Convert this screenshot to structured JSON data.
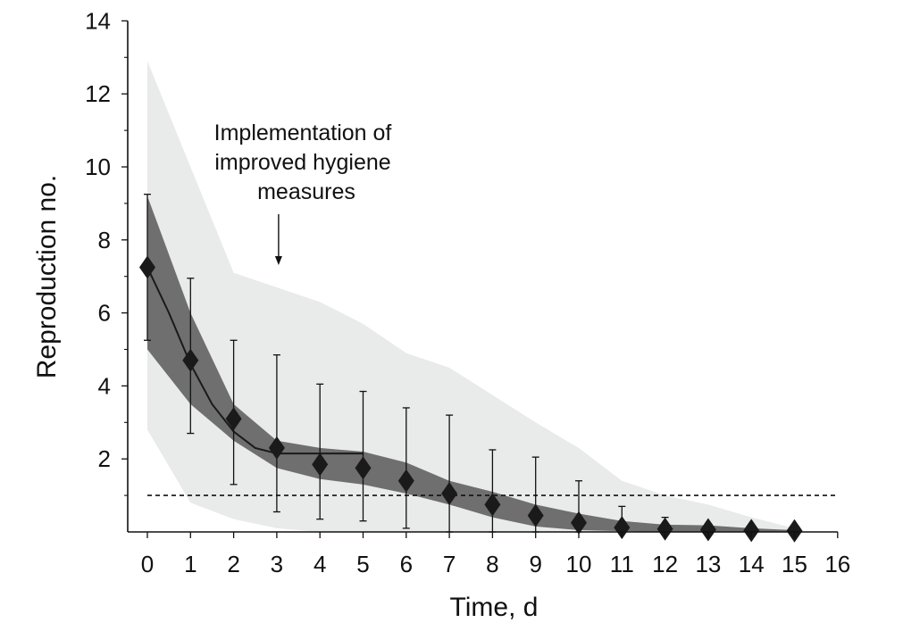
{
  "chart_data": {
    "type": "line",
    "xlabel": "Time, d",
    "ylabel": "Reproduction no.",
    "xlim": [
      0,
      16
    ],
    "ylim": [
      0,
      14
    ],
    "x_ticks": [
      "0",
      "1",
      "2",
      "3",
      "4",
      "5",
      "6",
      "7",
      "8",
      "9",
      "10",
      "11",
      "12",
      "13",
      "14",
      "15",
      "16"
    ],
    "y_ticks": [
      "2",
      "4",
      "6",
      "8",
      "10",
      "12",
      "14"
    ],
    "points": {
      "x": [
        0,
        1,
        2,
        3,
        4,
        5,
        6,
        7,
        8,
        9,
        10,
        11,
        12,
        13,
        14,
        15
      ],
      "y": [
        7.25,
        4.7,
        3.1,
        2.3,
        1.85,
        1.75,
        1.4,
        1.05,
        0.75,
        0.45,
        0.25,
        0.12,
        0.08,
        0.06,
        0.04,
        0.03
      ],
      "err_low": [
        5.25,
        2.7,
        1.3,
        0.55,
        0.35,
        0.3,
        0.1,
        0.0,
        0.0,
        0.0,
        0.0,
        0.0,
        0.0,
        0.0,
        0.0,
        0.0
      ],
      "err_high": [
        9.25,
        6.95,
        5.25,
        4.85,
        4.05,
        3.85,
        3.4,
        3.2,
        2.25,
        2.05,
        1.4,
        0.7,
        0.4,
        0.2,
        0.1,
        0.05
      ]
    },
    "fit_line": {
      "x": [
        0,
        0.5,
        1,
        1.5,
        2,
        2.5,
        3,
        3.5,
        4,
        4.5,
        5
      ],
      "y": [
        7.25,
        6.0,
        4.6,
        3.5,
        2.75,
        2.3,
        2.15,
        2.15,
        2.15,
        2.15,
        2.15
      ]
    },
    "inner_band": {
      "x": [
        0,
        1,
        2,
        3,
        4,
        5,
        6,
        7,
        8,
        9,
        10,
        11,
        12,
        13,
        14,
        15
      ],
      "lower": [
        5.0,
        3.5,
        2.5,
        1.75,
        1.45,
        1.3,
        1.05,
        0.75,
        0.4,
        0.15,
        0.05,
        0.02,
        0.0,
        0.0,
        0.0,
        0.0
      ],
      "upper": [
        9.2,
        6.0,
        3.5,
        2.5,
        2.3,
        2.2,
        1.9,
        1.4,
        1.1,
        0.75,
        0.5,
        0.3,
        0.2,
        0.18,
        0.1,
        0.05
      ]
    },
    "outer_band": {
      "x": [
        0,
        1,
        2,
        3,
        4,
        5,
        6,
        7,
        8,
        9,
        10,
        11,
        12,
        13,
        14,
        15
      ],
      "lower": [
        2.8,
        0.8,
        0.35,
        0.1,
        0.0,
        0.0,
        0.0,
        0.0,
        0.0,
        0.0,
        0.0,
        0.0,
        0.0,
        0.0,
        0.0,
        0.0
      ],
      "upper": [
        12.9,
        10.0,
        7.1,
        6.7,
        6.3,
        5.7,
        4.9,
        4.5,
        3.75,
        3.0,
        2.3,
        1.4,
        1.0,
        0.75,
        0.4,
        0.1
      ]
    },
    "threshold": 1.0,
    "annotation": {
      "lines": [
        "Implementation of",
        "improved hygiene",
        "measures"
      ],
      "arrow_x": 3
    },
    "colors": {
      "outer_band": "#e9eaea",
      "inner_band": "#6f6f6f",
      "markers": "#1a1a1a",
      "axes": "#111111"
    }
  }
}
